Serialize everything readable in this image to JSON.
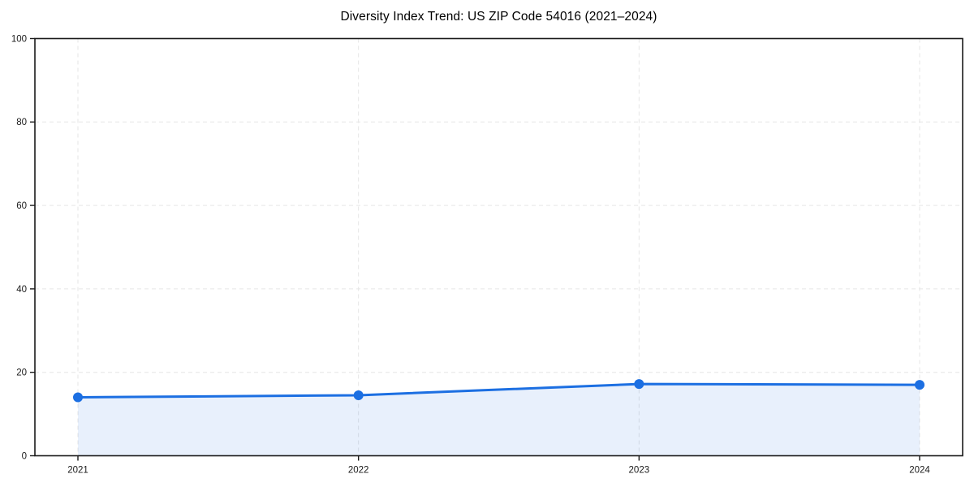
{
  "chart_data": {
    "type": "area",
    "title": "Diversity Index Trend: US ZIP Code 54016 (2021–2024)",
    "x": [
      2021,
      2022,
      2023,
      2024
    ],
    "xtick_labels": [
      "2021",
      "2022",
      "2023",
      "2024"
    ],
    "series": [
      {
        "name": "Diversity Index",
        "values": [
          14,
          14.5,
          17.2,
          17
        ]
      }
    ],
    "xlabel": "",
    "ylabel": "",
    "ylim": [
      0,
      100
    ],
    "yticks": [
      0,
      20,
      40,
      60,
      80,
      100
    ],
    "grid": "dashed-both-axes",
    "legend": "none",
    "colors": {
      "line": "#1c6fe2",
      "marker": "#1c6fe2",
      "fill": "#1c6fe2",
      "fill_opacity": 0.1,
      "grid": "#e6e6e6",
      "spine": "#1a1a1a",
      "tick_label": "#1a1a1a",
      "title": "#000000",
      "background": "#ffffff"
    }
  }
}
